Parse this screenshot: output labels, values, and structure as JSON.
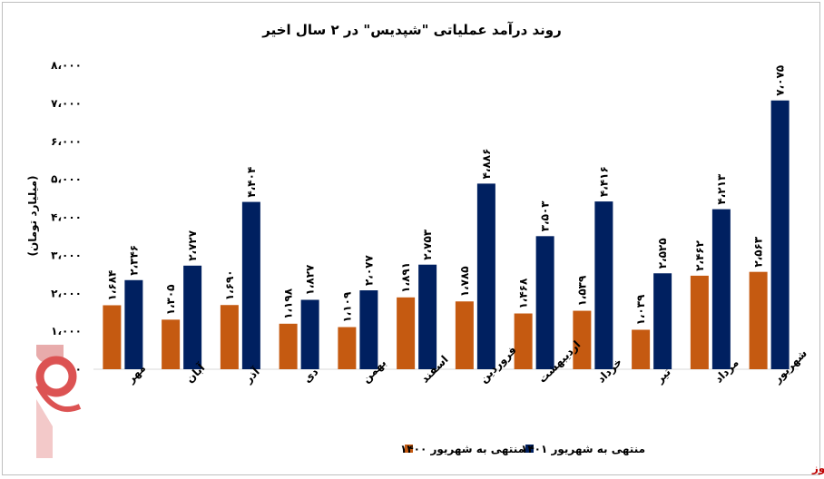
{
  "brand_text": "بورس نیوز",
  "chart_data": {
    "type": "bar",
    "title": "روند درآمد عملیاتی \"شپدیس\" در ۲ سال اخیر",
    "ylabel": "(میلیارد تومان)",
    "ylim": [
      0,
      8000
    ],
    "yticks": [
      0,
      1000,
      2000,
      3000,
      4000,
      5000,
      6000,
      7000,
      8000
    ],
    "ytick_labels": [
      "۰",
      "۱،۰۰۰",
      "۲،۰۰۰",
      "۳،۰۰۰",
      "۴،۰۰۰",
      "۵،۰۰۰",
      "۶،۰۰۰",
      "۷،۰۰۰",
      "۸،۰۰۰"
    ],
    "grid": false,
    "legend_position": "bottom",
    "categories": [
      "مهر",
      "آبان",
      "آذر",
      "دی",
      "بهمن",
      "اسفند",
      "فروردین",
      "اردیبهشت",
      "خرداد",
      "تیر",
      "مرداد",
      "شهریور"
    ],
    "series": [
      {
        "name": "منتهی به شهریور ۱۴۰۰",
        "color": "#c55a11",
        "values": [
          1684,
          1305,
          1690,
          1198,
          1109,
          1891,
          1785,
          1468,
          1539,
          1039,
          2462,
          2563
        ],
        "labels": [
          "۱،۶۸۴",
          "۱،۳۰۵",
          "۱،۶۹۰",
          "۱،۱۹۸",
          "۱،۱۰۹",
          "۱،۸۹۱",
          "۱،۷۸۵",
          "۱،۴۶۸",
          "۱،۵۳۹",
          "۱،۰۳۹",
          "۲،۴۶۲",
          "۲،۵۶۳"
        ]
      },
      {
        "name": "منتهی به شهریور ۱۴۰۱",
        "color": "#002060",
        "values": [
          2346,
          2727,
          4404,
          1827,
          2077,
          2753,
          4886,
          3503,
          4416,
          2525,
          4213,
          7075
        ],
        "labels": [
          "۲،۳۴۶",
          "۲،۷۲۷",
          "۴،۴۰۴",
          "۱،۸۲۷",
          "۲،۰۷۷",
          "۲،۷۵۳",
          "۴،۸۸۶",
          "۳،۵۰۳",
          "۴،۴۱۶",
          "۲،۵۲۵",
          "۴،۲۱۳",
          "۷،۰۷۵"
        ]
      }
    ]
  }
}
